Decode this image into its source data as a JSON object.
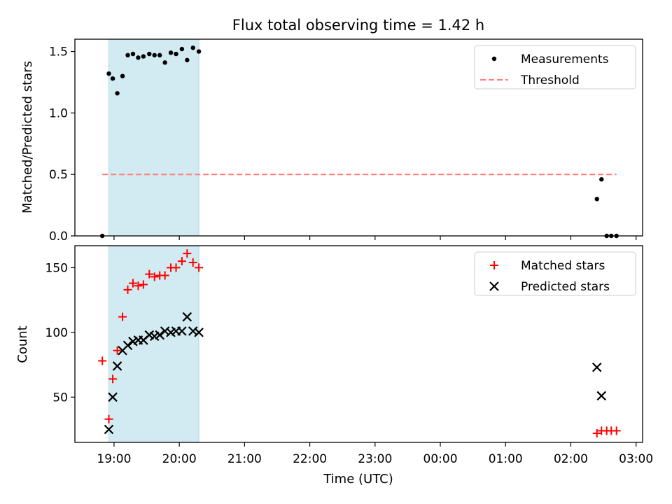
{
  "chart_data": {
    "title": "Flux total observing time = 1.42 h",
    "xlabel": "Time (UTC)",
    "x_unit": "hours (UTC) along a continuous axis; values >= 24 are past midnight (e.g. 26.5 = 02:30)",
    "xlim": [
      18.4,
      27.1
    ],
    "x_ticks": [
      19,
      20,
      21,
      22,
      23,
      24,
      25,
      26,
      27
    ],
    "x_tick_labels": [
      "19:00",
      "20:00",
      "21:00",
      "22:00",
      "23:00",
      "00:00",
      "01:00",
      "02:00",
      "03:00"
    ],
    "shaded_interval": {
      "x_start": 18.92,
      "x_end": 20.3,
      "color": "#add8e6"
    },
    "panels": [
      {
        "id": "ratio",
        "type": "scatter",
        "ylabel": "Matched/Predicted stars",
        "ylim": [
          0,
          1.6
        ],
        "y_ticks": [
          0.0,
          0.5,
          1.0,
          1.5
        ],
        "y_tick_labels": [
          "0.0",
          "0.5",
          "1.0",
          "1.5"
        ],
        "legend_position": "upper right",
        "series": [
          {
            "name": "Measurements",
            "marker": "dot",
            "color": "#000000",
            "points": [
              [
                18.82,
                0.0
              ],
              [
                18.92,
                1.32
              ],
              [
                18.98,
                1.28
              ],
              [
                19.05,
                1.16
              ],
              [
                19.13,
                1.3
              ],
              [
                19.21,
                1.47
              ],
              [
                19.29,
                1.48
              ],
              [
                19.37,
                1.45
              ],
              [
                19.45,
                1.46
              ],
              [
                19.54,
                1.48
              ],
              [
                19.62,
                1.47
              ],
              [
                19.7,
                1.47
              ],
              [
                19.78,
                1.41
              ],
              [
                19.87,
                1.49
              ],
              [
                19.95,
                1.48
              ],
              [
                20.04,
                1.52
              ],
              [
                20.12,
                1.43
              ],
              [
                20.21,
                1.53
              ],
              [
                20.3,
                1.5
              ],
              [
                26.4,
                0.3
              ],
              [
                26.47,
                0.46
              ],
              [
                26.55,
                0.0
              ],
              [
                26.62,
                0.0
              ],
              [
                26.7,
                0.0
              ]
            ]
          },
          {
            "name": "Threshold",
            "style": "dashed line",
            "color": "#ff7f7f",
            "points": [
              [
                18.82,
                0.5
              ],
              [
                26.7,
                0.5
              ]
            ]
          }
        ]
      },
      {
        "id": "counts",
        "type": "scatter",
        "ylabel": "Count",
        "ylim": [
          15,
          167
        ],
        "y_ticks": [
          50,
          100,
          150
        ],
        "y_tick_labels": [
          "50",
          "100",
          "150"
        ],
        "legend_position": "upper right",
        "series": [
          {
            "name": "Matched stars",
            "marker": "plus",
            "color": "#ff0000",
            "points": [
              [
                18.82,
                78
              ],
              [
                18.92,
                33
              ],
              [
                18.98,
                64
              ],
              [
                19.05,
                86
              ],
              [
                19.13,
                112
              ],
              [
                19.21,
                133
              ],
              [
                19.29,
                138
              ],
              [
                19.37,
                136
              ],
              [
                19.45,
                137
              ],
              [
                19.54,
                145
              ],
              [
                19.62,
                143
              ],
              [
                19.7,
                144
              ],
              [
                19.78,
                144
              ],
              [
                19.87,
                150
              ],
              [
                19.95,
                150
              ],
              [
                20.04,
                155
              ],
              [
                20.12,
                161
              ],
              [
                20.21,
                154
              ],
              [
                20.3,
                150
              ],
              [
                26.4,
                22
              ],
              [
                26.47,
                24
              ],
              [
                26.55,
                24
              ],
              [
                26.62,
                24
              ],
              [
                26.7,
                24
              ]
            ]
          },
          {
            "name": "Predicted stars",
            "marker": "x",
            "color": "#000000",
            "points": [
              [
                18.92,
                25
              ],
              [
                18.98,
                50
              ],
              [
                19.05,
                74
              ],
              [
                19.13,
                86
              ],
              [
                19.21,
                90
              ],
              [
                19.29,
                93
              ],
              [
                19.37,
                94
              ],
              [
                19.45,
                94
              ],
              [
                19.54,
                98
              ],
              [
                19.62,
                97
              ],
              [
                19.7,
                98
              ],
              [
                19.78,
                101
              ],
              [
                19.87,
                100
              ],
              [
                19.95,
                101
              ],
              [
                20.04,
                101
              ],
              [
                20.12,
                112
              ],
              [
                20.21,
                101
              ],
              [
                20.3,
                100
              ],
              [
                26.4,
                73
              ],
              [
                26.47,
                51
              ]
            ]
          }
        ]
      }
    ]
  }
}
